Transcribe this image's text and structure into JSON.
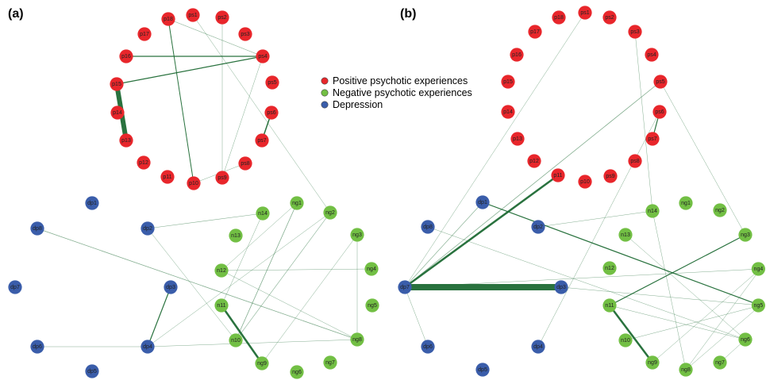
{
  "panels": [
    {
      "label": "(a)"
    },
    {
      "label": "(b)"
    }
  ],
  "legend": [
    {
      "label": "Positive psychotic experiences",
      "color": "#e8262b"
    },
    {
      "label": "Negative psychotic experiences",
      "color": "#72bf44"
    },
    {
      "label": "Depression",
      "color": "#3a5daa"
    }
  ],
  "colors": {
    "positive": "#e8262b",
    "negative": "#72bf44",
    "depression": "#3a5daa",
    "edge": "#1e6b34"
  },
  "networks": [
    {
      "panel": "(a)",
      "nodes": [
        {
          "id": "ps1",
          "group": "positive"
        },
        {
          "id": "ps2",
          "group": "positive"
        },
        {
          "id": "ps3",
          "group": "positive"
        },
        {
          "id": "ps4",
          "group": "positive"
        },
        {
          "id": "ps5",
          "group": "positive"
        },
        {
          "id": "ps6",
          "group": "positive"
        },
        {
          "id": "ps7",
          "group": "positive"
        },
        {
          "id": "ps8",
          "group": "positive"
        },
        {
          "id": "ps9",
          "group": "positive"
        },
        {
          "id": "p10",
          "group": "positive"
        },
        {
          "id": "p11",
          "group": "positive"
        },
        {
          "id": "p12",
          "group": "positive"
        },
        {
          "id": "p13",
          "group": "positive"
        },
        {
          "id": "p14",
          "group": "positive"
        },
        {
          "id": "p15",
          "group": "positive"
        },
        {
          "id": "p16",
          "group": "positive"
        },
        {
          "id": "p17",
          "group": "positive"
        },
        {
          "id": "p18",
          "group": "positive"
        },
        {
          "id": "ng1",
          "group": "negative"
        },
        {
          "id": "ng2",
          "group": "negative"
        },
        {
          "id": "ng3",
          "group": "negative"
        },
        {
          "id": "ng4",
          "group": "negative"
        },
        {
          "id": "ng5",
          "group": "negative"
        },
        {
          "id": "ng6",
          "group": "negative"
        },
        {
          "id": "ng7",
          "group": "negative"
        },
        {
          "id": "ng8",
          "group": "negative"
        },
        {
          "id": "ng9",
          "group": "negative"
        },
        {
          "id": "n10",
          "group": "negative"
        },
        {
          "id": "n11",
          "group": "negative"
        },
        {
          "id": "n12",
          "group": "negative"
        },
        {
          "id": "n13",
          "group": "negative"
        },
        {
          "id": "n14",
          "group": "negative"
        },
        {
          "id": "dp1",
          "group": "depression"
        },
        {
          "id": "dp2",
          "group": "depression"
        },
        {
          "id": "dp3",
          "group": "depression"
        },
        {
          "id": "dp4",
          "group": "depression"
        },
        {
          "id": "dp5",
          "group": "depression"
        },
        {
          "id": "dp6",
          "group": "depression"
        },
        {
          "id": "dp7",
          "group": "depression"
        },
        {
          "id": "dp8",
          "group": "depression"
        }
      ],
      "edges": [
        {
          "source": "p15",
          "target": "p13",
          "weight": 6
        },
        {
          "source": "p15",
          "target": "ps4",
          "weight": 1.2
        },
        {
          "source": "p16",
          "target": "ps4",
          "weight": 1.2
        },
        {
          "source": "p18",
          "target": "p10",
          "weight": 1
        },
        {
          "source": "p18",
          "target": "ps4",
          "weight": 0.6
        },
        {
          "source": "ps6",
          "target": "ps7",
          "weight": 1.5
        },
        {
          "source": "ps1",
          "target": "ng2",
          "weight": 0.5
        },
        {
          "source": "ps2",
          "target": "ps9",
          "weight": 0.5
        },
        {
          "source": "ps4",
          "target": "ps9",
          "weight": 0.5
        },
        {
          "source": "p10",
          "target": "ps8",
          "weight": 0.5
        },
        {
          "source": "ng9",
          "target": "n11",
          "weight": 2.5
        },
        {
          "source": "dp4",
          "target": "dp3",
          "weight": 1.2
        },
        {
          "source": "dp4",
          "target": "ng8",
          "weight": 0.5
        },
        {
          "source": "dp8",
          "target": "ng8",
          "weight": 0.8
        },
        {
          "source": "dp2",
          "target": "n14",
          "weight": 0.6
        },
        {
          "source": "n10",
          "target": "ng1",
          "weight": 0.8
        },
        {
          "source": "n10",
          "target": "ng2",
          "weight": 0.6
        },
        {
          "source": "ng9",
          "target": "ng3",
          "weight": 0.5
        },
        {
          "source": "n12",
          "target": "ng4",
          "weight": 0.5
        },
        {
          "source": "dp6",
          "target": "dp4",
          "weight": 0.5
        },
        {
          "source": "dp2",
          "target": "n10",
          "weight": 0.5
        },
        {
          "source": "ng8",
          "target": "ng3",
          "weight": 0.5
        },
        {
          "source": "dp4",
          "target": "ng2",
          "weight": 0.5
        },
        {
          "source": "n12",
          "target": "ng1",
          "weight": 0.5
        },
        {
          "source": "n12",
          "target": "ng8",
          "weight": 0.5
        },
        {
          "source": "n11",
          "target": "n14",
          "weight": 0.5
        }
      ]
    },
    {
      "panel": "(b)",
      "nodes": [
        {
          "id": "ps1",
          "group": "positive"
        },
        {
          "id": "ps2",
          "group": "positive"
        },
        {
          "id": "ps3",
          "group": "positive"
        },
        {
          "id": "ps4",
          "group": "positive"
        },
        {
          "id": "ps5",
          "group": "positive"
        },
        {
          "id": "ps6",
          "group": "positive"
        },
        {
          "id": "ps7",
          "group": "positive"
        },
        {
          "id": "ps8",
          "group": "positive"
        },
        {
          "id": "ps9",
          "group": "positive"
        },
        {
          "id": "p10",
          "group": "positive"
        },
        {
          "id": "p11",
          "group": "positive"
        },
        {
          "id": "p12",
          "group": "positive"
        },
        {
          "id": "p13",
          "group": "positive"
        },
        {
          "id": "p14",
          "group": "positive"
        },
        {
          "id": "p15",
          "group": "positive"
        },
        {
          "id": "p16",
          "group": "positive"
        },
        {
          "id": "p17",
          "group": "positive"
        },
        {
          "id": "p18",
          "group": "positive"
        },
        {
          "id": "ng1",
          "group": "negative"
        },
        {
          "id": "ng2",
          "group": "negative"
        },
        {
          "id": "ng3",
          "group": "negative"
        },
        {
          "id": "ng4",
          "group": "negative"
        },
        {
          "id": "ng5",
          "group": "negative"
        },
        {
          "id": "ng6",
          "group": "negative"
        },
        {
          "id": "ng7",
          "group": "negative"
        },
        {
          "id": "ng8",
          "group": "negative"
        },
        {
          "id": "ng9",
          "group": "negative"
        },
        {
          "id": "n10",
          "group": "negative"
        },
        {
          "id": "n11",
          "group": "negative"
        },
        {
          "id": "n12",
          "group": "negative"
        },
        {
          "id": "n13",
          "group": "negative"
        },
        {
          "id": "n14",
          "group": "negative"
        },
        {
          "id": "dp1",
          "group": "depression"
        },
        {
          "id": "dp2",
          "group": "depression"
        },
        {
          "id": "dp3",
          "group": "depression"
        },
        {
          "id": "dp4",
          "group": "depression"
        },
        {
          "id": "dp5",
          "group": "depression"
        },
        {
          "id": "dp6",
          "group": "depression"
        },
        {
          "id": "dp7",
          "group": "depression"
        },
        {
          "id": "dp8",
          "group": "depression"
        }
      ],
      "edges": [
        {
          "source": "dp7",
          "target": "dp3",
          "weight": 8
        },
        {
          "source": "dp7",
          "target": "p11",
          "weight": 2.5
        },
        {
          "source": "dp1",
          "target": "ng5",
          "weight": 1.2
        },
        {
          "source": "n11",
          "target": "ng9",
          "weight": 2.5
        },
        {
          "source": "n11",
          "target": "ng3",
          "weight": 1.2
        },
        {
          "source": "ps6",
          "target": "ps7",
          "weight": 1.2
        },
        {
          "source": "dp7",
          "target": "ps5",
          "weight": 0.8
        },
        {
          "source": "dp7",
          "target": "ps1",
          "weight": 0.5
        },
        {
          "source": "dp7",
          "target": "dp1",
          "weight": 0.6
        },
        {
          "source": "dp7",
          "target": "ng4",
          "weight": 0.5
        },
        {
          "source": "dp8",
          "target": "ng6",
          "weight": 0.5
        },
        {
          "source": "dp2",
          "target": "n14",
          "weight": 0.5
        },
        {
          "source": "dp3",
          "target": "ng5",
          "weight": 0.5
        },
        {
          "source": "dp4",
          "target": "ps6",
          "weight": 0.5
        },
        {
          "source": "dp6",
          "target": "dp7",
          "weight": 0.5
        },
        {
          "source": "ps3",
          "target": "n14",
          "weight": 0.5
        },
        {
          "source": "ps5",
          "target": "ng3",
          "weight": 0.5
        },
        {
          "source": "n14",
          "target": "ng8",
          "weight": 0.5
        },
        {
          "source": "n13",
          "target": "ng6",
          "weight": 0.5
        },
        {
          "source": "n10",
          "target": "ng5",
          "weight": 0.5
        },
        {
          "source": "ng9",
          "target": "ng4",
          "weight": 0.5
        },
        {
          "source": "ng8",
          "target": "ng5",
          "weight": 0.5
        },
        {
          "source": "ng7",
          "target": "ng6",
          "weight": 0.5
        },
        {
          "source": "n11",
          "target": "ng6",
          "weight": 0.5
        },
        {
          "source": "ng8",
          "target": "ng4",
          "weight": 0.5
        }
      ]
    }
  ]
}
